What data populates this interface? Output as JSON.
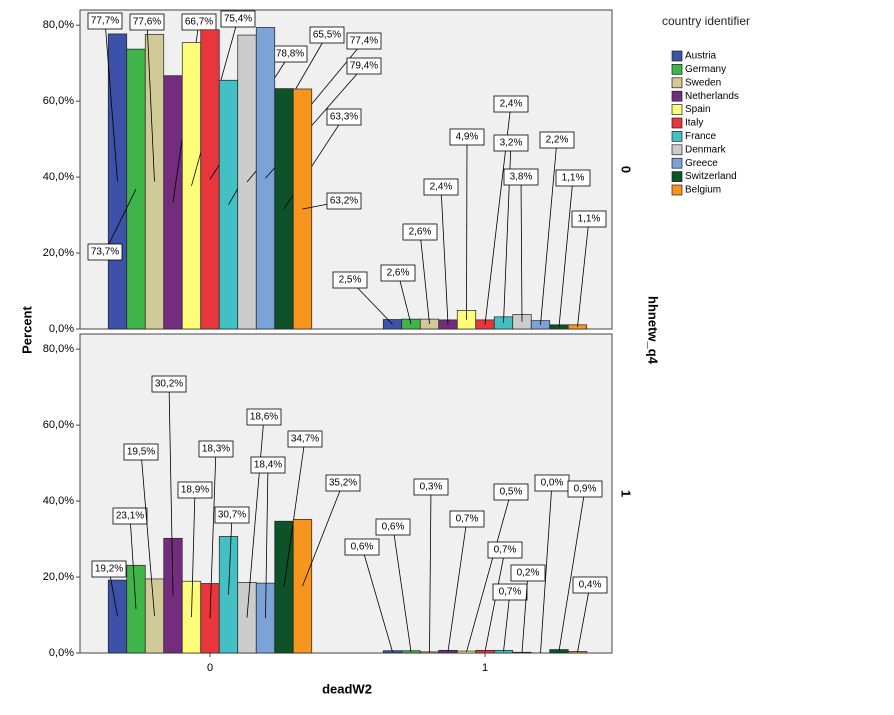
{
  "chart_data": {
    "type": "bar",
    "x_label": "deadW2",
    "y_label": "Percent",
    "panel_title": "hhnetw_q4",
    "legend_title": "country identifier",
    "categories": [
      "0",
      "1"
    ],
    "ylim": [
      0,
      84
    ],
    "yticks": [
      {
        "value": 0,
        "label": "0,0%"
      },
      {
        "value": 20,
        "label": "20,0%"
      },
      {
        "value": 40,
        "label": "40,0%"
      },
      {
        "value": 60,
        "label": "60,0%"
      },
      {
        "value": 80,
        "label": "80,0%"
      }
    ],
    "series": [
      {
        "name": "Austria",
        "color": "#3d51a8"
      },
      {
        "name": "Germany",
        "color": "#3fb449"
      },
      {
        "name": "Sweden",
        "color": "#d2c999"
      },
      {
        "name": "Netherlands",
        "color": "#722d7f"
      },
      {
        "name": "Spain",
        "color": "#fdfd7a"
      },
      {
        "name": "Italy",
        "color": "#e8373c"
      },
      {
        "name": "France",
        "color": "#43c0c3"
      },
      {
        "name": "Denmark",
        "color": "#cccccc"
      },
      {
        "name": "Greece",
        "color": "#7ba3d8"
      },
      {
        "name": "Switzerland",
        "color": "#0d5229"
      },
      {
        "name": "Belgium",
        "color": "#f7961e"
      }
    ],
    "panels": [
      {
        "label": "0",
        "values": [
          [
            77.7,
            73.7,
            77.6,
            66.7,
            75.4,
            78.8,
            65.5,
            77.4,
            79.4,
            63.3,
            63.2
          ],
          [
            2.5,
            2.6,
            2.6,
            2.4,
            4.9,
            2.4,
            3.2,
            3.8,
            2.2,
            1.1,
            1.1
          ]
        ],
        "value_labels": [
          [
            "77,7%",
            "73,7%",
            "77,6%",
            "66,7%",
            "75,4%",
            "78,8%",
            "65,5%",
            "77,4%",
            "79,4%",
            "63,3%",
            "63,2%"
          ],
          [
            "2,5%",
            "2,6%",
            "2,6%",
            "2,4%",
            "4,9%",
            "2,4%",
            "3,2%",
            "3,8%",
            "2,2%",
            "1,1%",
            "1,1%"
          ]
        ]
      },
      {
        "label": "1",
        "values": [
          [
            19.2,
            23.1,
            19.5,
            30.2,
            18.9,
            18.3,
            30.7,
            18.6,
            18.4,
            34.7,
            35.2
          ],
          [
            0.6,
            0.6,
            0.3,
            0.7,
            0.5,
            0.7,
            0.7,
            0.2,
            0.0,
            0.9,
            0.4
          ]
        ],
        "value_labels": [
          [
            "19,2%",
            "23,1%",
            "19,5%",
            "30,2%",
            "18,9%",
            "18,3%",
            "30,7%",
            "18,6%",
            "18,4%",
            "34,7%",
            "35,2%"
          ],
          [
            "0,6%",
            "0,6%",
            "0,3%",
            "0,7%",
            "0,5%",
            "0,7%",
            "0,7%",
            "0,2%",
            "0,0%",
            "0,9%",
            "0,4%"
          ]
        ]
      }
    ]
  }
}
